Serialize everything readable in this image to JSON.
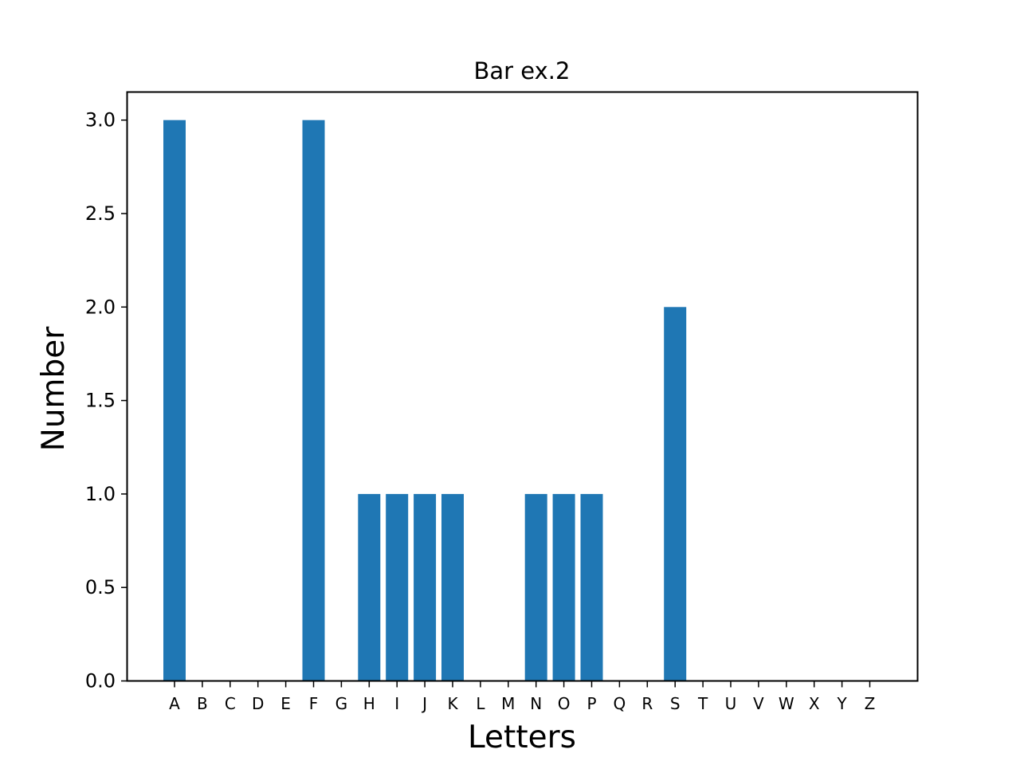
{
  "chart_data": {
    "type": "bar",
    "title": "Bar ex.2",
    "xlabel": "Letters",
    "ylabel": "Number",
    "categories": [
      "A",
      "B",
      "C",
      "D",
      "E",
      "F",
      "G",
      "H",
      "I",
      "J",
      "K",
      "L",
      "M",
      "N",
      "O",
      "P",
      "Q",
      "R",
      "S",
      "T",
      "U",
      "V",
      "W",
      "X",
      "Y",
      "Z"
    ],
    "values": [
      3,
      0,
      0,
      0,
      0,
      3,
      0,
      1,
      1,
      1,
      1,
      0,
      0,
      1,
      1,
      1,
      0,
      0,
      2,
      0,
      0,
      0,
      0,
      0,
      0,
      0
    ],
    "ylim": [
      0,
      3.15
    ],
    "yticks": [
      "0.0",
      "0.5",
      "1.0",
      "1.5",
      "2.0",
      "2.5",
      "3.0"
    ],
    "grid": false,
    "bar_color": "#1f77b4"
  }
}
